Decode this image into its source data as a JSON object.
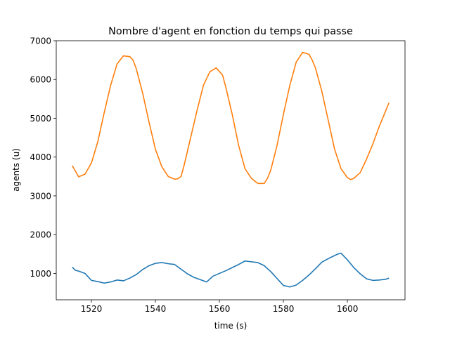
{
  "chart_data": {
    "type": "line",
    "title": "Nombre d'agent en fonction du temps qui passe",
    "xlabel": "time (s)",
    "ylabel": "agents (u)",
    "xlim": [
      1509,
      1618
    ],
    "ylim": [
      320,
      7000
    ],
    "xticks": [
      1520,
      1540,
      1560,
      1580,
      1600
    ],
    "yticks": [
      1000,
      2000,
      3000,
      4000,
      5000,
      6000,
      7000
    ],
    "grid": false,
    "legend": "none",
    "series": [
      {
        "color": "#ff7f0e",
        "x": [
          1514,
          1516,
          1518,
          1520,
          1522,
          1524,
          1526,
          1528,
          1530,
          1532,
          1533,
          1534,
          1536,
          1538,
          1540,
          1542,
          1544,
          1546,
          1547,
          1548,
          1549,
          1551,
          1553,
          1555,
          1557,
          1559,
          1561,
          1562,
          1564,
          1566,
          1568,
          1570,
          1572,
          1574,
          1575,
          1576,
          1578,
          1580,
          1582,
          1584,
          1586,
          1588,
          1589,
          1590,
          1592,
          1594,
          1596,
          1598,
          1600,
          1601,
          1602,
          1604,
          1606,
          1608,
          1610,
          1612,
          1613
        ],
        "y": [
          3780,
          3490,
          3560,
          3850,
          4400,
          5150,
          5850,
          6400,
          6610,
          6590,
          6500,
          6280,
          5650,
          4900,
          4200,
          3750,
          3500,
          3430,
          3440,
          3500,
          3800,
          4500,
          5200,
          5850,
          6200,
          6300,
          6110,
          5800,
          5100,
          4300,
          3700,
          3450,
          3320,
          3320,
          3450,
          3650,
          4300,
          5100,
          5850,
          6450,
          6700,
          6650,
          6500,
          6300,
          5700,
          4950,
          4200,
          3700,
          3470,
          3420,
          3450,
          3600,
          3950,
          4350,
          4800,
          5200,
          5400
        ]
      },
      {
        "color": "#1f77b4",
        "x": [
          1514,
          1515,
          1516,
          1518,
          1520,
          1522,
          1524,
          1526,
          1528,
          1530,
          1532,
          1534,
          1536,
          1538,
          1540,
          1542,
          1544,
          1546,
          1548,
          1550,
          1552,
          1554,
          1556,
          1558,
          1560,
          1562,
          1564,
          1566,
          1568,
          1570,
          1572,
          1574,
          1576,
          1578,
          1580,
          1582,
          1584,
          1586,
          1588,
          1590,
          1592,
          1594,
          1596,
          1597,
          1598,
          1600,
          1602,
          1604,
          1606,
          1608,
          1610,
          1612,
          1613
        ],
        "y": [
          1160,
          1080,
          1060,
          1000,
          820,
          790,
          750,
          780,
          830,
          810,
          880,
          970,
          1100,
          1200,
          1260,
          1280,
          1250,
          1230,
          1110,
          990,
          900,
          840,
          780,
          930,
          1000,
          1070,
          1150,
          1230,
          1320,
          1300,
          1280,
          1200,
          1050,
          870,
          690,
          650,
          700,
          820,
          960,
          1120,
          1290,
          1380,
          1460,
          1500,
          1520,
          1350,
          1150,
          990,
          860,
          820,
          830,
          850,
          880
        ]
      }
    ]
  }
}
